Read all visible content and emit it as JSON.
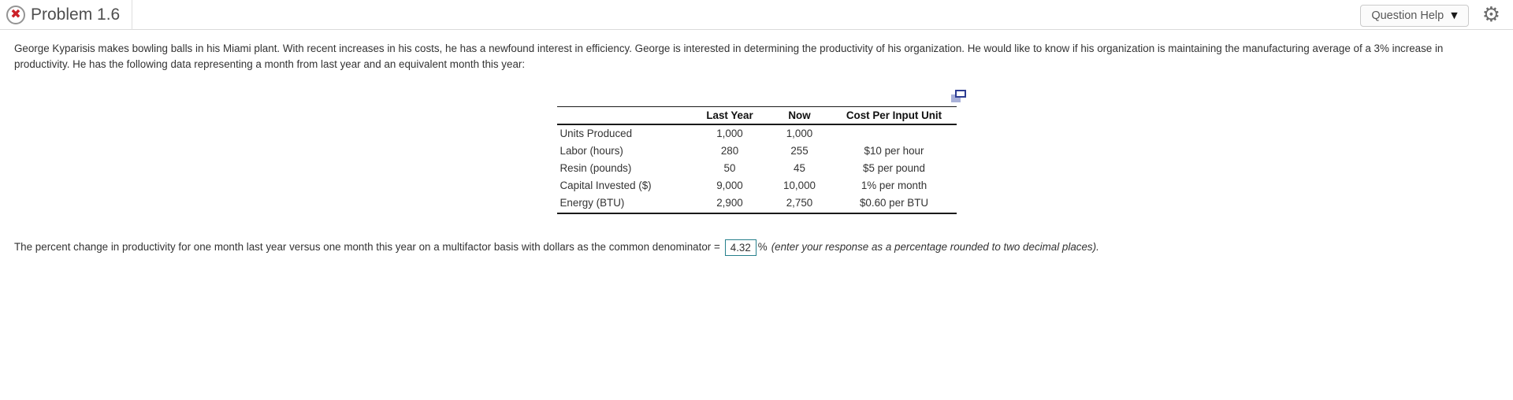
{
  "header": {
    "title": "Problem 1.6",
    "question_help_label": "Question Help"
  },
  "icons": {
    "incorrect_x": "✖",
    "dropdown_caret": "▼",
    "gear": "⚙"
  },
  "colors": {
    "incorrect_red": "#cb2128",
    "answer_box_border": "#26808c",
    "copy_icon_dark": "#2e3d92",
    "copy_icon_light": "#a9b1d9"
  },
  "problem": {
    "text": "George Kyparisis makes bowling balls in his Miami plant. With recent increases in his costs, he has a newfound interest in efficiency. George is interested in determining the productivity of his organization. He would like to know if his organization is maintaining the manufacturing average of a 3% increase in productivity. He has the following data representing a month from last year and an equivalent month this year:"
  },
  "table": {
    "headers": [
      "Last Year",
      "Now",
      "Cost Per Input Unit"
    ],
    "rows": [
      {
        "label": "Units Produced",
        "last_year": "1,000",
        "now": "1,000",
        "cost": ""
      },
      {
        "label": "Labor (hours)",
        "last_year": "280",
        "now": "255",
        "cost": "$10 per hour"
      },
      {
        "label": "Resin (pounds)",
        "last_year": "50",
        "now": "45",
        "cost": "$5 per pound"
      },
      {
        "label": "Capital Invested ($)",
        "last_year": "9,000",
        "now": "10,000",
        "cost": "1% per month"
      },
      {
        "label": "Energy (BTU)",
        "last_year": "2,900",
        "now": "2,750",
        "cost": "$0.60 per BTU"
      }
    ]
  },
  "answer": {
    "prefix": "The percent change in productivity for one month last year versus one month this year on a multifactor basis with dollars as the common denominator =",
    "value": "4.32",
    "unit": "%",
    "instruction": "(enter your response as a percentage rounded to two decimal places)."
  }
}
